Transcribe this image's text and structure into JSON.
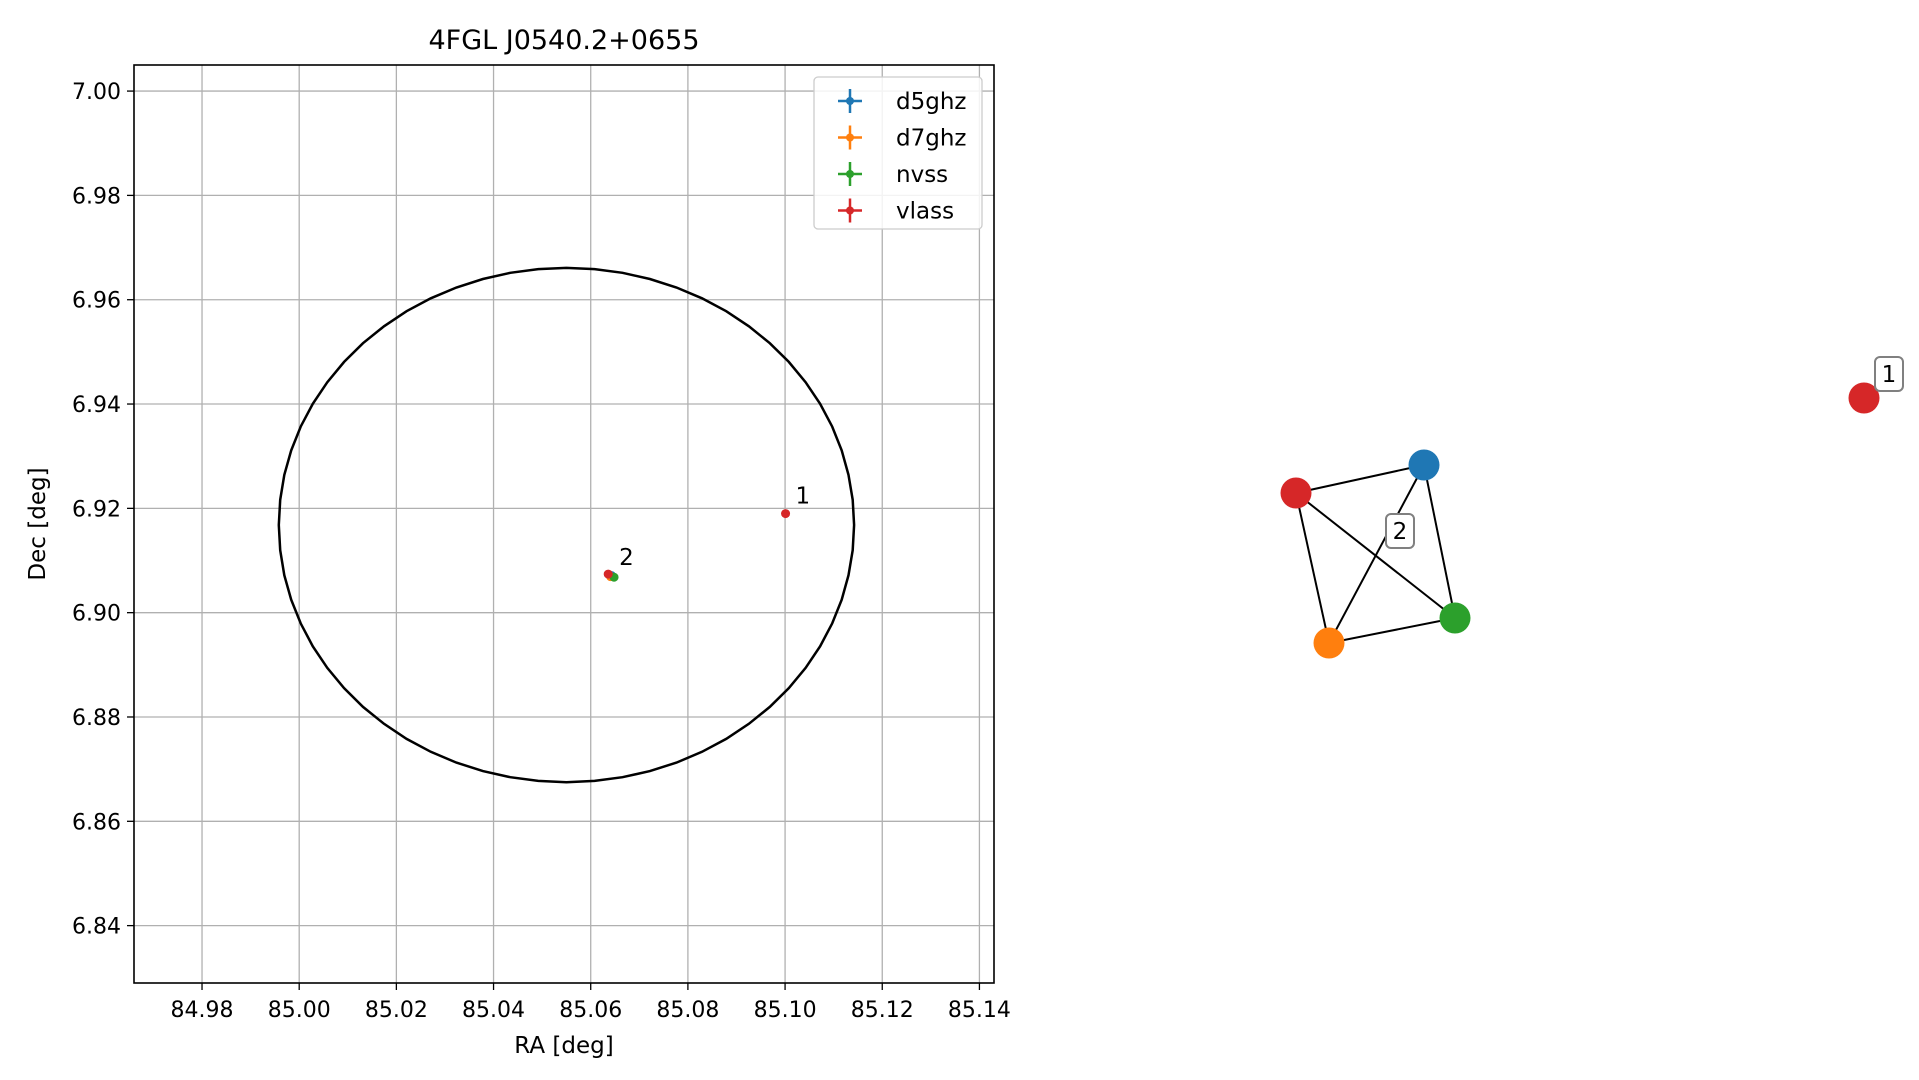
{
  "chart_data": [
    {
      "type": "scatter",
      "title": "4FGL J0540.2+0655",
      "xlabel": "RA [deg]",
      "ylabel": "Dec [deg]",
      "xlim": [
        84.966,
        85.143
      ],
      "ylim": [
        6.829,
        7.005
      ],
      "xticks": [
        "84.98",
        "85.00",
        "85.02",
        "85.04",
        "85.06",
        "85.08",
        "85.10",
        "85.12",
        "85.14"
      ],
      "xtick_values": [
        84.98,
        85.0,
        85.02,
        85.04,
        85.06,
        85.08,
        85.1,
        85.12,
        85.14
      ],
      "yticks": [
        "6.84",
        "6.86",
        "6.88",
        "6.90",
        "6.92",
        "6.94",
        "6.96",
        "6.98",
        "7.00"
      ],
      "ytick_values": [
        6.84,
        6.86,
        6.88,
        6.9,
        6.92,
        6.94,
        6.96,
        6.98,
        7.0
      ],
      "grid": true,
      "legend_position": "top-right",
      "series": [
        {
          "name": "d5ghz",
          "color": "#1f77b4",
          "points": [
            {
              "x": 85.0643,
              "y": 6.9071
            }
          ]
        },
        {
          "name": "d7ghz",
          "color": "#ff7f0e",
          "points": [
            {
              "x": 85.0641,
              "y": 6.9069
            }
          ]
        },
        {
          "name": "nvss",
          "color": "#2ca02c",
          "points": [
            {
              "x": 85.0648,
              "y": 6.9068
            }
          ]
        },
        {
          "name": "vlass",
          "color": "#d62728",
          "points": [
            {
              "x": 85.0636,
              "y": 6.9074
            },
            {
              "x": 85.1001,
              "y": 6.919
            }
          ]
        }
      ],
      "localization_ellipse": {
        "center_x": 85.055,
        "center_y": 6.9168,
        "semi_axis_x": 0.0592,
        "semi_axis_y": 0.0493,
        "color": "#000000"
      },
      "annotations": [
        {
          "text": "1",
          "x": 85.1001,
          "y": 6.919
        },
        {
          "text": "2",
          "x": 85.0638,
          "y": 6.9072
        }
      ]
    },
    {
      "type": "network",
      "nodes": [
        {
          "id": "d5ghz",
          "color": "#1f77b4"
        },
        {
          "id": "vlass-2",
          "color": "#d62728"
        },
        {
          "id": "nvss",
          "color": "#2ca02c"
        },
        {
          "id": "d7ghz",
          "color": "#ff7f0e"
        },
        {
          "id": "vlass-1",
          "color": "#d62728"
        }
      ],
      "edges": [
        [
          "vlass-2",
          "d5ghz"
        ],
        [
          "vlass-2",
          "d7ghz"
        ],
        [
          "vlass-2",
          "nvss"
        ],
        [
          "d5ghz",
          "d7ghz"
        ],
        [
          "d5ghz",
          "nvss"
        ],
        [
          "d7ghz",
          "nvss"
        ]
      ],
      "group_labels": [
        {
          "text": "2",
          "group": [
            "d5ghz",
            "vlass-2",
            "nvss",
            "d7ghz"
          ]
        },
        {
          "text": "1",
          "group": [
            "vlass-1"
          ]
        }
      ]
    }
  ]
}
